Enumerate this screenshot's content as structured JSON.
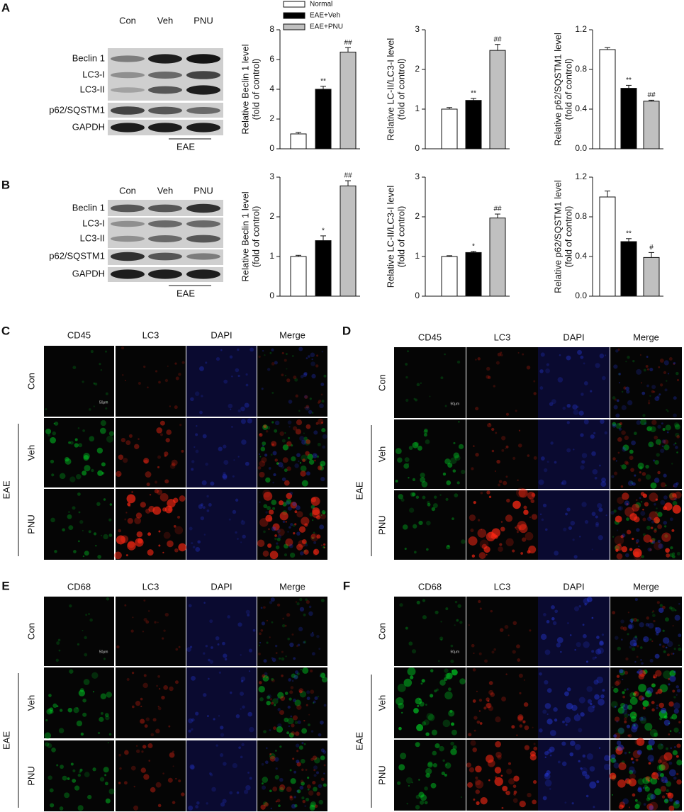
{
  "panels": [
    {
      "label": "A",
      "blot": {
        "lanes": [
          "Con",
          "Veh",
          "PNU"
        ],
        "rows": [
          "Beclin 1",
          "LC3-I",
          "LC3-II",
          "p62/SQSTM1",
          "GAPDH"
        ],
        "group": "EAE"
      }
    },
    {
      "label": "B",
      "blot": {
        "lanes": [
          "Con",
          "Veh",
          "PNU"
        ],
        "rows": [
          "Beclin 1",
          "LC3-I",
          "LC3-II",
          "p62/SQSTM1",
          "GAPDH"
        ],
        "group": "EAE"
      }
    },
    {
      "label": "C",
      "columns": [
        "CD45",
        "LC3",
        "DAPI",
        "Merge"
      ],
      "rows": [
        "Con",
        "Veh",
        "PNU"
      ],
      "group": "EAE",
      "scale_bar": "50μm"
    },
    {
      "label": "D",
      "columns": [
        "CD45",
        "LC3",
        "DAPI",
        "Merge"
      ],
      "rows": [
        "Con",
        "Veh",
        "PNU"
      ],
      "group": "EAE",
      "scale_bar": "50μm"
    },
    {
      "label": "E",
      "columns": [
        "CD68",
        "LC3",
        "DAPI",
        "Merge"
      ],
      "rows": [
        "Con",
        "Veh",
        "PNU"
      ],
      "group": "EAE",
      "scale_bar": "50μm"
    },
    {
      "label": "F",
      "columns": [
        "CD68",
        "LC3",
        "DAPI",
        "Merge"
      ],
      "rows": [
        "Con",
        "Veh",
        "PNU"
      ],
      "group": "EAE",
      "scale_bar": "50μm"
    }
  ],
  "chart_data": [
    {
      "type": "bar",
      "legend": [
        "Normal",
        "EAE+Veh",
        "EAE+PNU"
      ],
      "colors": [
        "#ffffff",
        "#000000",
        "#c0c0c0"
      ],
      "ylabel": [
        "Relative Beclin 1 level",
        "(fold of control)"
      ],
      "values": [
        1.0,
        4.0,
        6.5
      ],
      "errors": [
        0.1,
        0.2,
        0.3
      ],
      "annotations": [
        null,
        "**",
        "##"
      ],
      "ylim": [
        0,
        8
      ],
      "yticks": [
        0,
        2,
        4,
        6,
        8
      ]
    },
    {
      "type": "bar",
      "colors": [
        "#ffffff",
        "#000000",
        "#c0c0c0"
      ],
      "ylabel": [
        "Relative LC-II/LC3-I level",
        "(fold of control)"
      ],
      "values": [
        1.0,
        1.22,
        2.48
      ],
      "errors": [
        0.04,
        0.05,
        0.15
      ],
      "annotations": [
        null,
        "**",
        "##"
      ],
      "ylim": [
        0,
        3
      ],
      "yticks": [
        0,
        1,
        2,
        3
      ]
    },
    {
      "type": "bar",
      "colors": [
        "#ffffff",
        "#000000",
        "#c0c0c0"
      ],
      "ylabel": [
        "Relative p62/SQSTM1 level",
        "(fold of control)"
      ],
      "values": [
        1.0,
        0.61,
        0.48
      ],
      "errors": [
        0.02,
        0.03,
        0.01
      ],
      "annotations": [
        null,
        "**",
        "##"
      ],
      "ylim": [
        0,
        1.2
      ],
      "yticks": [
        {
          "value": 0,
          "label": "0.0"
        },
        0.4,
        0.8,
        1.2
      ]
    },
    {
      "type": "bar",
      "colors": [
        "#ffffff",
        "#000000",
        "#c0c0c0"
      ],
      "ylabel": [
        "Relative Beclin 1 level",
        "(fold of control)"
      ],
      "values": [
        1.0,
        1.4,
        2.78
      ],
      "errors": [
        0.03,
        0.12,
        0.13
      ],
      "annotations": [
        null,
        "*",
        "##"
      ],
      "ylim": [
        0,
        3
      ],
      "yticks": [
        0,
        1,
        2,
        3
      ]
    },
    {
      "type": "bar",
      "colors": [
        "#ffffff",
        "#000000",
        "#c0c0c0"
      ],
      "ylabel": [
        "Relative LC-II/LC3-I level",
        "(fold of control)"
      ],
      "values": [
        1.0,
        1.1,
        1.97
      ],
      "errors": [
        0.02,
        0.03,
        0.1
      ],
      "annotations": [
        null,
        "*",
        "##"
      ],
      "ylim": [
        0,
        3
      ],
      "yticks": [
        0,
        1,
        2,
        3
      ]
    },
    {
      "type": "bar",
      "colors": [
        "#ffffff",
        "#000000",
        "#c0c0c0"
      ],
      "ylabel": [
        "Relative p62/SQSTM1 level",
        "(fold of control)"
      ],
      "values": [
        1.0,
        0.55,
        0.39
      ],
      "errors": [
        0.06,
        0.03,
        0.05
      ],
      "annotations": [
        null,
        "**",
        "#"
      ],
      "ylim": [
        0,
        1.2
      ],
      "yticks": [
        {
          "value": 0,
          "label": "0.0"
        },
        0.4,
        0.8,
        1.2
      ]
    }
  ]
}
